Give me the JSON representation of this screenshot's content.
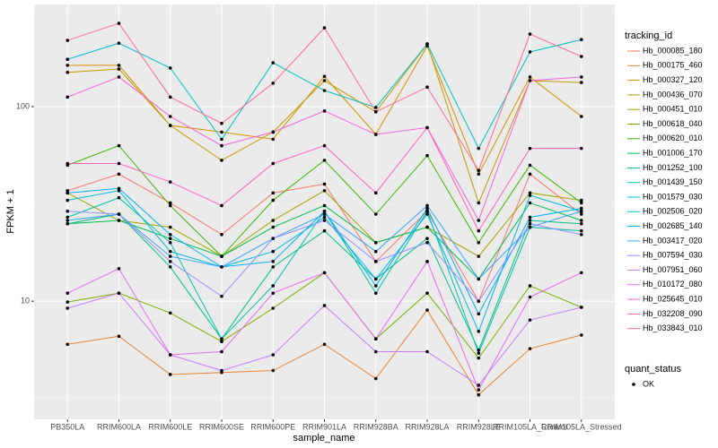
{
  "chart_data": {
    "type": "line",
    "log_y": true,
    "grid": true,
    "x_label": "sample_name",
    "y_label": "FPKM + 1",
    "legend_title": "tracking_id",
    "categories": [
      "PB350LA",
      "RRIM600LA",
      "RRIM600LE",
      "RRIM600SE",
      "RRIM600PE",
      "RRIM901LA",
      "RRIM928BA",
      "RRIM928LA",
      "RRIM928LE",
      "RRIM105LA_Control",
      "RRIM105LA_Stressed"
    ],
    "ylim": [
      2.47,
      335
    ],
    "yticks": [
      10,
      100
    ],
    "quant_status": {
      "title": "quant_status",
      "labels": [
        "OK"
      ]
    },
    "series": [
      {
        "name": "Hb_000085_180",
        "color": "#F8766D",
        "values": [
          37,
          45,
          32,
          22,
          36,
          40,
          16,
          29,
          10,
          45,
          28
        ]
      },
      {
        "name": "Hb_000175_460",
        "color": "#EA8331",
        "values": [
          6.0,
          6.6,
          4.2,
          4.3,
          4.4,
          6.0,
          4.0,
          9.0,
          3.3,
          5.7,
          6.7
        ]
      },
      {
        "name": "Hb_000327_120",
        "color": "#D89000",
        "values": [
          163,
          163,
          80,
          74,
          68,
          143,
          72,
          205,
          45,
          142,
          89
        ]
      },
      {
        "name": "Hb_000436_070",
        "color": "#C09B00",
        "values": [
          150,
          156,
          80,
          53,
          74,
          136,
          94,
          210,
          32,
          136,
          133
        ]
      },
      {
        "name": "Hb_000451_010",
        "color": "#A3A500",
        "values": [
          36,
          26,
          24,
          17,
          26,
          37,
          20,
          24,
          17,
          36,
          33
        ]
      },
      {
        "name": "Hb_000618_040",
        "color": "#7CAE00",
        "values": [
          9.9,
          11,
          8.7,
          6.2,
          9.2,
          14,
          6.4,
          11,
          5.1,
          12,
          9.3
        ]
      },
      {
        "name": "Hb_000620_010",
        "color": "#39B600",
        "values": [
          50,
          63,
          31,
          17,
          33,
          53,
          28,
          56,
          20,
          50,
          32
        ]
      },
      {
        "name": "Hb_001006_170",
        "color": "#00BB4E",
        "values": [
          25,
          26,
          21,
          17,
          24,
          31,
          20,
          24,
          13,
          32,
          26
        ]
      },
      {
        "name": "Hb_001252_100",
        "color": "#00BF7D",
        "values": [
          25,
          28,
          15,
          6.4,
          15,
          23,
          13,
          21,
          5.6,
          26,
          25
        ]
      },
      {
        "name": "Hb_001439_150",
        "color": "#00C1A3",
        "values": [
          27,
          34,
          20,
          6.4,
          12,
          29,
          11,
          29,
          5.4,
          24,
          23
        ]
      },
      {
        "name": "Hb_001579_030",
        "color": "#00BFC4",
        "values": [
          175,
          212,
          158,
          68,
          168,
          121,
          99,
          210,
          61,
          191,
          221
        ]
      },
      {
        "name": "Hb_002506_020",
        "color": "#00BAE0",
        "values": [
          33,
          37,
          18,
          15,
          18,
          27,
          13,
          28,
          7,
          35,
          29
        ]
      },
      {
        "name": "Hb_002685_140",
        "color": "#00B0F6",
        "values": [
          36,
          38,
          22,
          15,
          16,
          29,
          12,
          30,
          8.6,
          27,
          30
        ]
      },
      {
        "name": "Hb_003417_020",
        "color": "#35A2FF",
        "values": [
          26,
          28,
          17,
          15,
          21,
          28,
          18,
          31,
          13,
          24,
          29
        ]
      },
      {
        "name": "Hb_007594_030",
        "color": "#9590FF",
        "values": [
          29,
          28,
          16,
          10.6,
          21,
          26,
          16,
          20,
          10,
          25,
          22
        ]
      },
      {
        "name": "Hb_007951_060",
        "color": "#C77CFF",
        "values": [
          9.2,
          11,
          5.3,
          4.4,
          5.3,
          9.5,
          5.5,
          5.5,
          3.7,
          8,
          9.3
        ]
      },
      {
        "name": "Hb_010172_080",
        "color": "#E76BF3",
        "values": [
          11,
          14.7,
          5.3,
          5.5,
          11,
          14,
          6.4,
          16,
          3.5,
          10.5,
          14
        ]
      },
      {
        "name": "Hb_025645_010",
        "color": "#FA62DB",
        "values": [
          112,
          142,
          89,
          63,
          74,
          95,
          72,
          78,
          26,
          136,
          142
        ]
      },
      {
        "name": "Hb_032208_090",
        "color": "#FF62BC",
        "values": [
          51,
          51,
          41,
          31,
          51,
          63,
          36,
          78,
          23,
          61,
          61
        ]
      },
      {
        "name": "Hb_033843_010",
        "color": "#FF6C91",
        "values": [
          219,
          268,
          112,
          82,
          132,
          254,
          94,
          126,
          47,
          236,
          181
        ]
      }
    ]
  }
}
